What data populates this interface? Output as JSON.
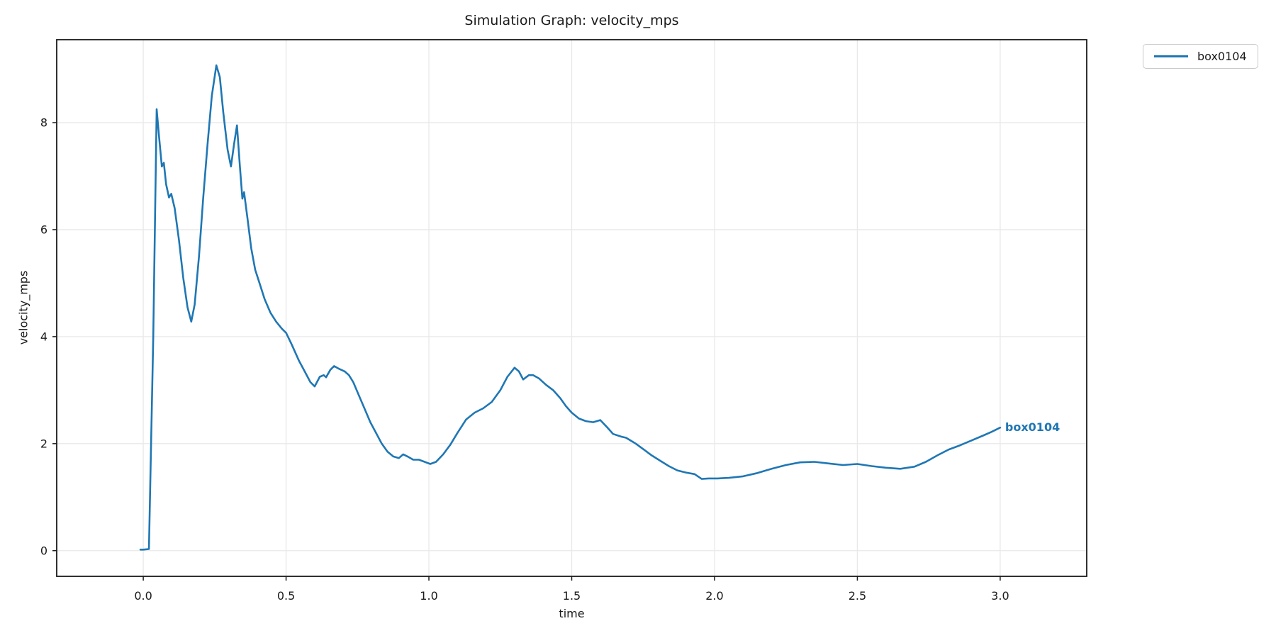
{
  "colors": {
    "line": "#1f77b4",
    "grid": "#e8e8e8",
    "spine": "#1a1a1a",
    "text": "#1a1a1a",
    "legend_border": "#c9c9c9",
    "background": "#ffffff"
  },
  "chart_data": {
    "type": "line",
    "title": "Simulation Graph: velocity_mps",
    "xlabel": "time",
    "ylabel": "velocity_mps",
    "xlim": [
      -0.303,
      3.303
    ],
    "ylim": [
      -0.48,
      9.55
    ],
    "xticks": [
      0.0,
      0.5,
      1.0,
      1.5,
      2.0,
      2.5,
      3.0
    ],
    "xtick_labels": [
      "0.0",
      "0.5",
      "1.0",
      "1.5",
      "2.0",
      "2.5",
      "3.0"
    ],
    "yticks": [
      0,
      2,
      4,
      6,
      8
    ],
    "ytick_labels": [
      "0",
      "2",
      "4",
      "6",
      "8"
    ],
    "grid": true,
    "legend_position": "outside-top-right",
    "series": [
      {
        "name": "box0104",
        "color": "#1f77b4",
        "end_label": "box0104",
        "points": [
          [
            -0.01,
            0.02
          ],
          [
            0.0,
            0.02
          ],
          [
            0.02,
            0.03
          ],
          [
            0.035,
            4.0
          ],
          [
            0.047,
            8.25
          ],
          [
            0.055,
            7.75
          ],
          [
            0.065,
            7.18
          ],
          [
            0.072,
            7.25
          ],
          [
            0.08,
            6.85
          ],
          [
            0.09,
            6.6
          ],
          [
            0.098,
            6.67
          ],
          [
            0.11,
            6.4
          ],
          [
            0.125,
            5.8
          ],
          [
            0.14,
            5.1
          ],
          [
            0.155,
            4.55
          ],
          [
            0.168,
            4.28
          ],
          [
            0.18,
            4.6
          ],
          [
            0.195,
            5.5
          ],
          [
            0.21,
            6.6
          ],
          [
            0.225,
            7.6
          ],
          [
            0.24,
            8.5
          ],
          [
            0.256,
            9.07
          ],
          [
            0.268,
            8.85
          ],
          [
            0.28,
            8.2
          ],
          [
            0.295,
            7.5
          ],
          [
            0.307,
            7.18
          ],
          [
            0.318,
            7.6
          ],
          [
            0.328,
            7.95
          ],
          [
            0.338,
            7.2
          ],
          [
            0.347,
            6.58
          ],
          [
            0.353,
            6.7
          ],
          [
            0.365,
            6.2
          ],
          [
            0.378,
            5.65
          ],
          [
            0.392,
            5.25
          ],
          [
            0.41,
            4.95
          ],
          [
            0.425,
            4.7
          ],
          [
            0.445,
            4.45
          ],
          [
            0.465,
            4.28
          ],
          [
            0.485,
            4.15
          ],
          [
            0.5,
            4.07
          ],
          [
            0.52,
            3.85
          ],
          [
            0.545,
            3.55
          ],
          [
            0.565,
            3.35
          ],
          [
            0.585,
            3.15
          ],
          [
            0.6,
            3.07
          ],
          [
            0.618,
            3.25
          ],
          [
            0.632,
            3.28
          ],
          [
            0.64,
            3.24
          ],
          [
            0.655,
            3.38
          ],
          [
            0.668,
            3.45
          ],
          [
            0.685,
            3.4
          ],
          [
            0.705,
            3.35
          ],
          [
            0.72,
            3.28
          ],
          [
            0.735,
            3.15
          ],
          [
            0.755,
            2.9
          ],
          [
            0.775,
            2.65
          ],
          [
            0.795,
            2.4
          ],
          [
            0.815,
            2.2
          ],
          [
            0.835,
            2.0
          ],
          [
            0.855,
            1.85
          ],
          [
            0.875,
            1.76
          ],
          [
            0.895,
            1.73
          ],
          [
            0.91,
            1.8
          ],
          [
            0.925,
            1.76
          ],
          [
            0.945,
            1.7
          ],
          [
            0.965,
            1.7
          ],
          [
            0.985,
            1.66
          ],
          [
            1.005,
            1.62
          ],
          [
            1.025,
            1.66
          ],
          [
            1.05,
            1.8
          ],
          [
            1.075,
            1.98
          ],
          [
            1.1,
            2.2
          ],
          [
            1.13,
            2.45
          ],
          [
            1.16,
            2.58
          ],
          [
            1.19,
            2.66
          ],
          [
            1.22,
            2.78
          ],
          [
            1.25,
            3.0
          ],
          [
            1.275,
            3.25
          ],
          [
            1.3,
            3.42
          ],
          [
            1.315,
            3.35
          ],
          [
            1.33,
            3.2
          ],
          [
            1.35,
            3.28
          ],
          [
            1.365,
            3.28
          ],
          [
            1.385,
            3.22
          ],
          [
            1.41,
            3.1
          ],
          [
            1.435,
            3.0
          ],
          [
            1.46,
            2.85
          ],
          [
            1.48,
            2.7
          ],
          [
            1.5,
            2.58
          ],
          [
            1.525,
            2.47
          ],
          [
            1.55,
            2.42
          ],
          [
            1.575,
            2.4
          ],
          [
            1.6,
            2.44
          ],
          [
            1.625,
            2.3
          ],
          [
            1.645,
            2.18
          ],
          [
            1.674,
            2.13
          ],
          [
            1.69,
            2.11
          ],
          [
            1.724,
            2.0
          ],
          [
            1.75,
            1.9
          ],
          [
            1.78,
            1.78
          ],
          [
            1.81,
            1.68
          ],
          [
            1.84,
            1.58
          ],
          [
            1.87,
            1.5
          ],
          [
            1.9,
            1.46
          ],
          [
            1.93,
            1.43
          ],
          [
            1.955,
            1.34
          ],
          [
            1.98,
            1.35
          ],
          [
            2.01,
            1.35
          ],
          [
            2.05,
            1.36
          ],
          [
            2.1,
            1.39
          ],
          [
            2.15,
            1.45
          ],
          [
            2.2,
            1.53
          ],
          [
            2.25,
            1.6
          ],
          [
            2.3,
            1.65
          ],
          [
            2.35,
            1.66
          ],
          [
            2.4,
            1.63
          ],
          [
            2.45,
            1.6
          ],
          [
            2.5,
            1.62
          ],
          [
            2.55,
            1.58
          ],
          [
            2.6,
            1.55
          ],
          [
            2.65,
            1.53
          ],
          [
            2.7,
            1.57
          ],
          [
            2.74,
            1.66
          ],
          [
            2.78,
            1.78
          ],
          [
            2.82,
            1.89
          ],
          [
            2.86,
            1.97
          ],
          [
            2.9,
            2.06
          ],
          [
            2.94,
            2.15
          ],
          [
            2.97,
            2.22
          ],
          [
            3.0,
            2.3
          ]
        ]
      }
    ]
  }
}
